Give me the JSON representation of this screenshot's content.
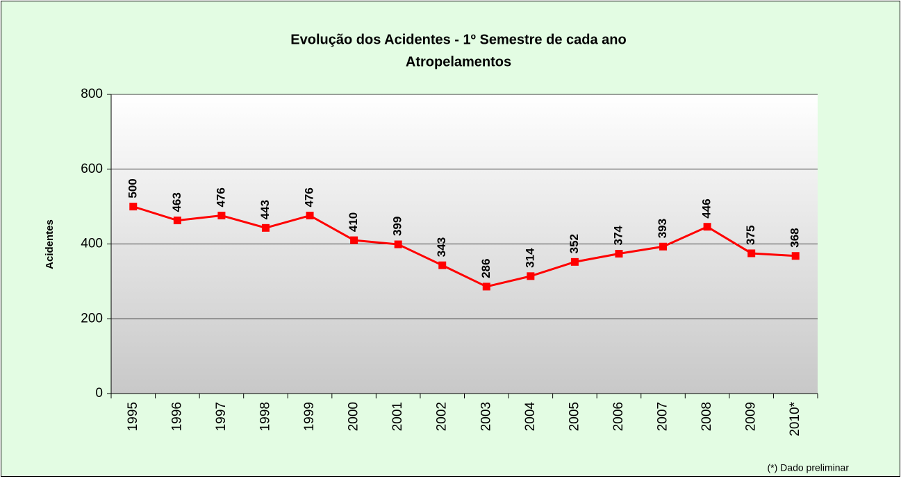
{
  "chart_data": {
    "type": "line",
    "title": "Evolução dos Acidentes - 1º Semestre de cada ano",
    "subtitle": "Atropelamentos",
    "y_label": "Acidentes",
    "note": "(*) Dado preliminar",
    "categories": [
      "1995",
      "1996",
      "1997",
      "1998",
      "1999",
      "2000",
      "2001",
      "2002",
      "2003",
      "2004",
      "2005",
      "2006",
      "2007",
      "2008",
      "2009",
      "2010*"
    ],
    "series": [
      {
        "color": "#ff0000",
        "values": [
          500,
          463,
          476,
          443,
          476,
          410,
          399,
          343,
          286,
          314,
          352,
          374,
          393,
          446,
          375,
          368
        ]
      }
    ],
    "ylim": [
      0,
      800
    ],
    "yticks": [
      0,
      200,
      400,
      600,
      800
    ],
    "grid": true
  }
}
